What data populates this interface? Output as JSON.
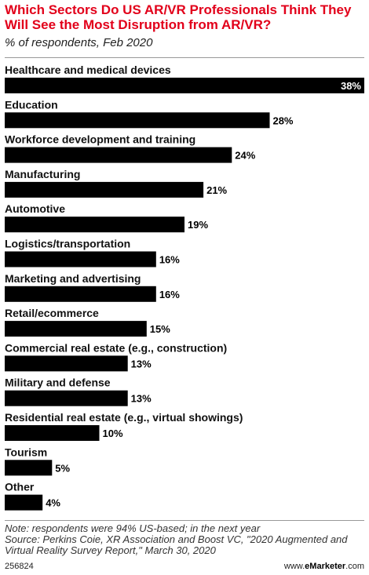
{
  "header": {
    "title": "Which Sectors Do US AR/VR Professionals Think They Will See the Most Disruption from AR/VR?",
    "subtitle": "% of respondents, Feb 2020"
  },
  "footer": {
    "note": "Note: respondents were 94% US-based; in the next year",
    "source": "Source: Perkins Coie, XR Association and Boost VC, \"2020 Augmented and Virtual Reality Survey Report,\" March 30, 2020",
    "chart_id": "256824",
    "brand_prefix": "www.",
    "brand_name": "eMarketer",
    "brand_suffix": ".com"
  },
  "colors": {
    "title": "#e2001a",
    "bar": "#000000",
    "inside_value_text": "#ffffff",
    "outside_value_text": "#000000"
  },
  "chart_data": {
    "type": "bar",
    "orientation": "horizontal",
    "title": "Which Sectors Do US AR/VR Professionals Think They Will See the Most Disruption from AR/VR?",
    "subtitle": "% of respondents, Feb 2020",
    "categories": [
      "Healthcare and medical devices",
      "Education",
      "Workforce development and training",
      "Manufacturing",
      "Automotive",
      "Logistics/transportation",
      "Marketing and advertising",
      "Retail/ecommerce",
      "Commercial real estate (e.g., construction)",
      "Military and defense",
      "Residential real estate (e.g., virtual showings)",
      "Tourism",
      "Other"
    ],
    "values": [
      38,
      28,
      24,
      21,
      19,
      16,
      16,
      15,
      13,
      13,
      10,
      5,
      4
    ],
    "value_labels": [
      "38%",
      "28%",
      "24%",
      "21%",
      "19%",
      "16%",
      "16%",
      "15%",
      "13%",
      "13%",
      "10%",
      "5%",
      "4%"
    ],
    "xlim": [
      0,
      38
    ],
    "grid": false,
    "legend": "none"
  }
}
